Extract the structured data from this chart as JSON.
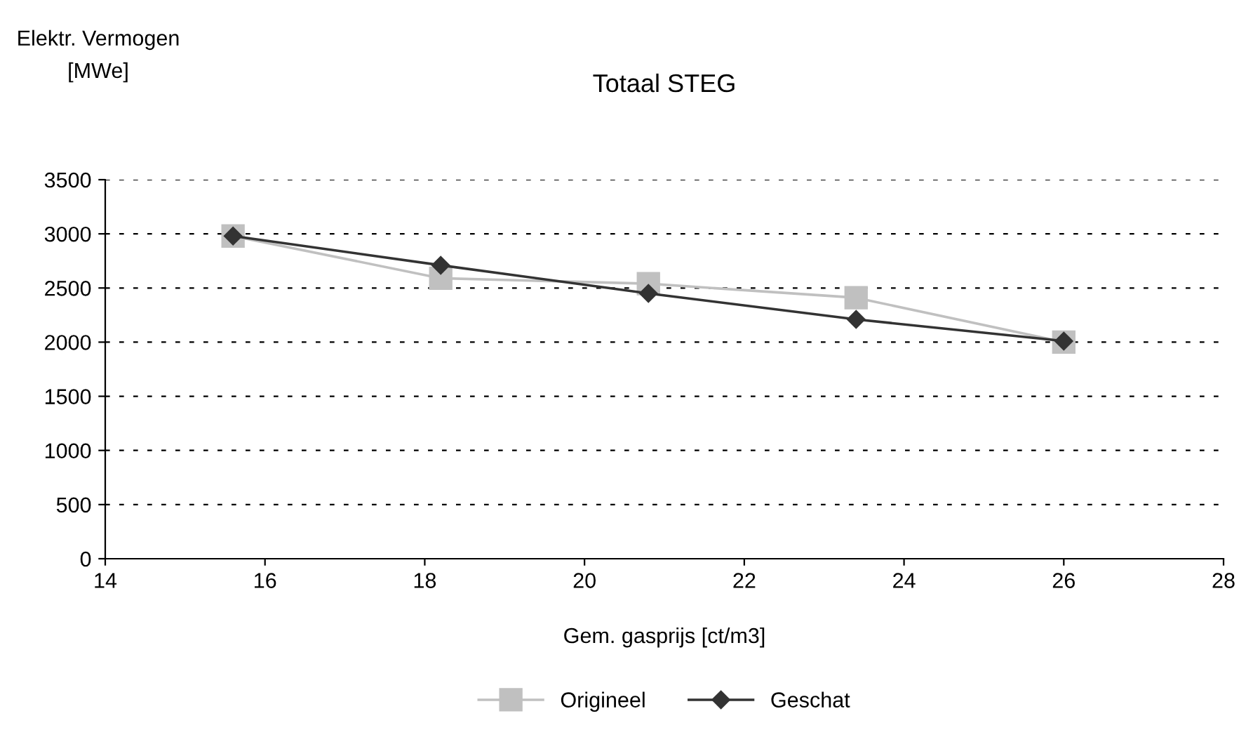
{
  "chart_data": {
    "type": "line",
    "title": "Totaal STEG",
    "ylabel": "Elektr. Vermogen\n[MWe]",
    "xlabel": "Gem. gasprijs [ct/m3]",
    "x": [
      15.6,
      18.2,
      20.8,
      23.4,
      26.0
    ],
    "series": [
      {
        "name": "Origineel",
        "color": "#c0c0c0",
        "marker": "square",
        "values": [
          2980,
          2590,
          2540,
          2410,
          2000
        ]
      },
      {
        "name": "Geschat",
        "color": "#333333",
        "marker": "diamond",
        "values": [
          2980,
          2710,
          2450,
          2210,
          2010
        ]
      }
    ],
    "xlim": [
      14,
      28
    ],
    "xticks": [
      14,
      16,
      18,
      20,
      22,
      24,
      26,
      28
    ],
    "ylim": [
      0,
      3500
    ],
    "yticks": [
      0,
      500,
      1000,
      1500,
      2000,
      2500,
      3000,
      3500
    ],
    "grid": "y",
    "legend": "bottom",
    "line_style": "solid"
  }
}
